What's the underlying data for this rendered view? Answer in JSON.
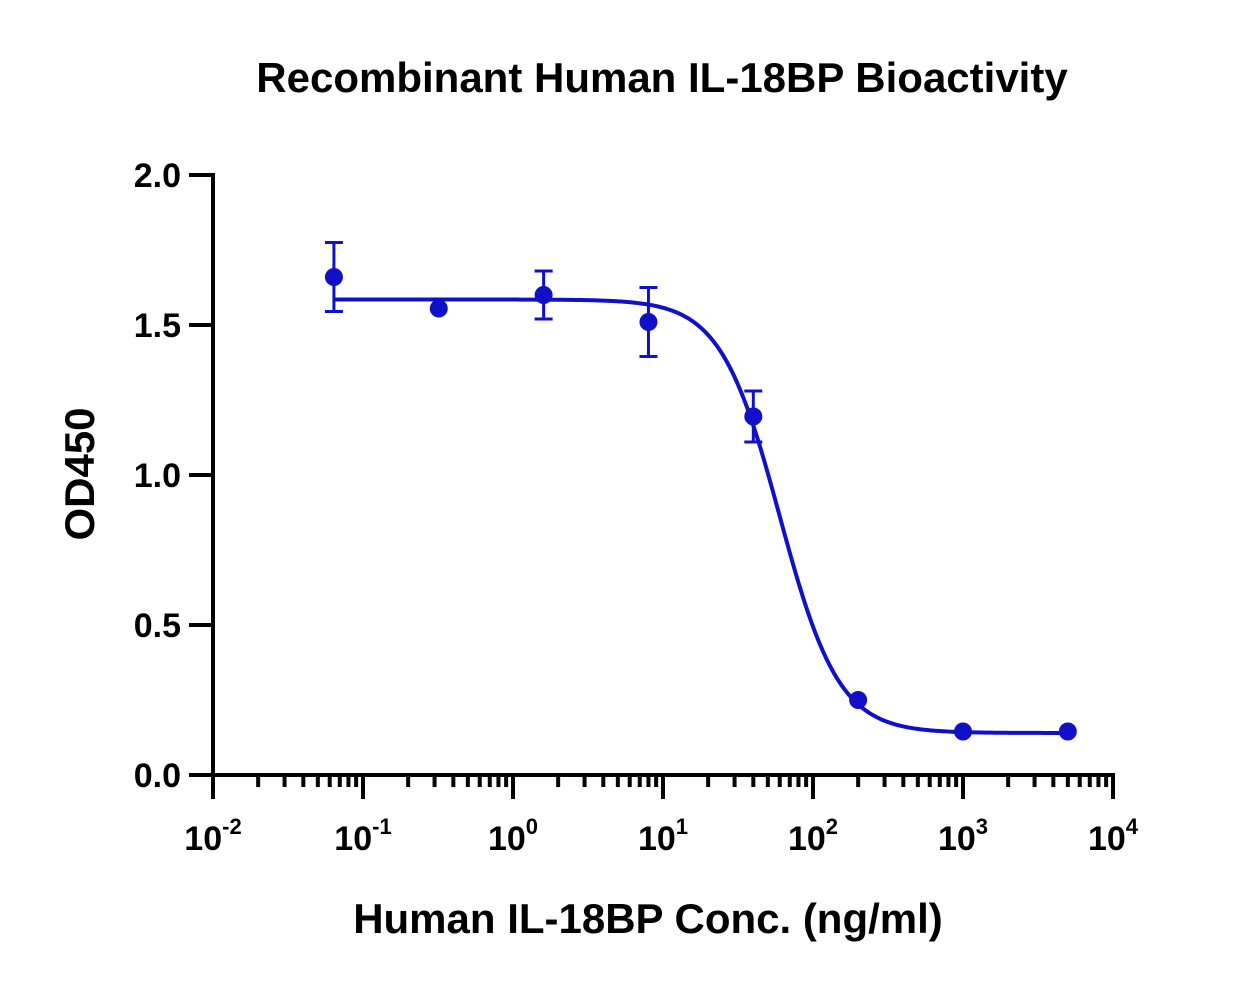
{
  "chart_data": {
    "type": "scatter",
    "title": "Recombinant Human IL-18BP Bioactivity",
    "xlabel": "Human IL-18BP Conc. (ng/ml)",
    "ylabel": "OD450",
    "x_scale": "log",
    "xlim": [
      0.01,
      10000
    ],
    "ylim": [
      0,
      2.0
    ],
    "x_ticks": [
      {
        "base": "10",
        "exp": "-2"
      },
      {
        "base": "10",
        "exp": "-1"
      },
      {
        "base": "10",
        "exp": "0"
      },
      {
        "base": "10",
        "exp": "1"
      },
      {
        "base": "10",
        "exp": "2"
      },
      {
        "base": "10",
        "exp": "3"
      },
      {
        "base": "10",
        "exp": "4"
      }
    ],
    "y_ticks": [
      "0.0",
      "0.5",
      "1.0",
      "1.5",
      "2.0"
    ],
    "grid": false,
    "color": "#1010c8",
    "series": [
      {
        "x": [
          0.064,
          0.32,
          1.6,
          8,
          40,
          200,
          1000,
          5000
        ],
        "y": [
          1.66,
          1.555,
          1.6,
          1.51,
          1.195,
          0.25,
          0.145,
          0.145
        ],
        "yerr": [
          0.115,
          0,
          0.08,
          0.115,
          0.085,
          0,
          0,
          0
        ],
        "fit": {
          "model": "4PL",
          "top": 1.585,
          "bottom": 0.14,
          "ec50": 60,
          "hill": 2.2
        }
      }
    ]
  }
}
